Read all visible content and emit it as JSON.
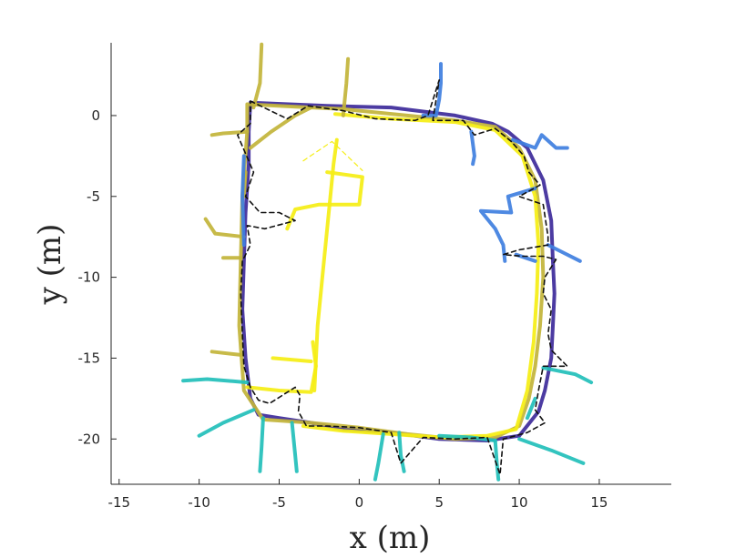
{
  "chart_data": {
    "type": "line",
    "title": "",
    "xlabel": "x (m)",
    "ylabel": "y (m)",
    "xlim": [
      -15.5,
      19.5
    ],
    "ylim": [
      -22.8,
      4.5
    ],
    "xticks": [
      -15,
      -10,
      -5,
      0,
      5,
      10,
      15
    ],
    "yticks": [
      0,
      -5,
      -10,
      -15,
      -20
    ],
    "xtick_labels": [
      "-15",
      "-10",
      "-5",
      "0",
      "5",
      "10",
      "15"
    ],
    "ytick_labels": [
      "0",
      "-5",
      "-10",
      "-15",
      "-20"
    ],
    "grid": false,
    "legend": "none",
    "colors": {
      "navy": "#3d2a9a",
      "olive": "#c2b43a",
      "yellow": "#f5ee14",
      "blue": "#3f7fe0",
      "teal": "#22bfba",
      "dashed": "#111111"
    },
    "series": [
      {
        "color": "navy",
        "style": "solid",
        "points": [
          [
            -6.8,
            0.8
          ],
          [
            -2,
            0.6
          ],
          [
            2,
            0.5
          ],
          [
            6,
            0
          ],
          [
            8.3,
            -0.5
          ],
          [
            9.3,
            -1
          ],
          [
            10.5,
            -2
          ],
          [
            11.5,
            -4
          ],
          [
            12,
            -6.5
          ],
          [
            12.1,
            -9
          ],
          [
            12.2,
            -11
          ],
          [
            12.1,
            -13
          ],
          [
            12,
            -15
          ],
          [
            11.6,
            -17
          ],
          [
            11.2,
            -18.3
          ],
          [
            10,
            -19.8
          ],
          [
            8,
            -20.1
          ],
          [
            5,
            -20
          ],
          [
            2,
            -19.6
          ],
          [
            -1,
            -19.4
          ],
          [
            -3,
            -19
          ],
          [
            -5,
            -18.7
          ],
          [
            -6.3,
            -18.5
          ],
          [
            -6.8,
            -17.5
          ],
          [
            -7.1,
            -15
          ],
          [
            -7.3,
            -12
          ],
          [
            -7.2,
            -9
          ],
          [
            -7.1,
            -6
          ],
          [
            -6.9,
            -3
          ],
          [
            -6.9,
            -1
          ],
          [
            -6.8,
            0.8
          ]
        ]
      },
      {
        "color": "olive",
        "style": "solid",
        "points": [
          [
            -7,
            0.7
          ],
          [
            -3,
            0.5
          ],
          [
            -1,
            0.4
          ],
          [
            0,
            0.3
          ],
          [
            3,
            0
          ],
          [
            6,
            -0.3
          ],
          [
            8.5,
            -0.7
          ],
          [
            10,
            -2
          ],
          [
            11,
            -4
          ],
          [
            11.4,
            -7
          ],
          [
            11.5,
            -10
          ],
          [
            11.3,
            -13
          ],
          [
            11,
            -15.5
          ],
          [
            10.6,
            -17.5
          ],
          [
            10,
            -19.2
          ],
          [
            8.5,
            -19.9
          ],
          [
            6,
            -20
          ],
          [
            3,
            -19.7
          ],
          [
            0,
            -19.3
          ],
          [
            -3,
            -19
          ],
          [
            -6,
            -18.8
          ],
          [
            -7.2,
            -17
          ],
          [
            -7.5,
            -13
          ],
          [
            -7.4,
            -9
          ],
          [
            -7.3,
            -5
          ],
          [
            -7,
            -1
          ],
          [
            -7,
            0.7
          ]
        ]
      },
      {
        "color": "yellow",
        "style": "solid",
        "points": [
          [
            -1.5,
            0.1
          ],
          [
            2,
            -0.2
          ],
          [
            6,
            -0.4
          ],
          [
            8.5,
            -0.9
          ],
          [
            10.2,
            -2.5
          ],
          [
            11,
            -5
          ],
          [
            11.2,
            -8
          ],
          [
            11.1,
            -11
          ],
          [
            10.9,
            -14
          ],
          [
            10.5,
            -17
          ],
          [
            9.8,
            -19.4
          ],
          [
            8,
            -19.8
          ],
          [
            5,
            -19.9
          ],
          [
            2,
            -19.7
          ],
          [
            -1,
            -19.5
          ],
          [
            -3.5,
            -19.2
          ]
        ]
      },
      {
        "color": "yellow",
        "style": "solid",
        "points": [
          [
            -7,
            -16.8
          ],
          [
            -5,
            -17
          ],
          [
            -3,
            -17.1
          ],
          [
            -2.7,
            -15.5
          ],
          [
            -2.9,
            -14
          ]
        ]
      },
      {
        "color": "yellow",
        "style": "solid",
        "points": [
          [
            -5.4,
            -15
          ],
          [
            -3,
            -15.2
          ]
        ]
      },
      {
        "color": "yellow",
        "style": "solid",
        "points": [
          [
            -2.8,
            -17
          ],
          [
            -2.6,
            -13
          ],
          [
            -2.3,
            -10
          ],
          [
            -2,
            -7
          ],
          [
            -1.8,
            -5
          ],
          [
            -1.6,
            -3
          ],
          [
            -1.4,
            -1.5
          ]
        ]
      },
      {
        "color": "yellow",
        "style": "solid",
        "points": [
          [
            -4.5,
            -7
          ],
          [
            -4,
            -5.8
          ],
          [
            -2.5,
            -5.5
          ],
          [
            0,
            -5.5
          ],
          [
            0.2,
            -3.8
          ],
          [
            -2,
            -3.5
          ]
        ]
      },
      {
        "color": "olive",
        "style": "solid",
        "points": [
          [
            -6.6,
            0.5
          ],
          [
            -6.2,
            2
          ],
          [
            -6.1,
            4.4
          ]
        ]
      },
      {
        "color": "olive",
        "style": "solid",
        "points": [
          [
            -7,
            -1
          ],
          [
            -8.5,
            -1.1
          ],
          [
            -9.2,
            -1.2
          ]
        ]
      },
      {
        "color": "olive",
        "style": "solid",
        "points": [
          [
            -7.2,
            -5
          ],
          [
            -7.1,
            -3.5
          ]
        ]
      },
      {
        "color": "olive",
        "style": "solid",
        "points": [
          [
            -7.2,
            -7.5
          ],
          [
            -9,
            -7.3
          ],
          [
            -9.6,
            -6.4
          ]
        ]
      },
      {
        "color": "olive",
        "style": "solid",
        "points": [
          [
            -7.4,
            -8.8
          ],
          [
            -8.5,
            -8.8
          ]
        ]
      },
      {
        "color": "olive",
        "style": "solid",
        "points": [
          [
            -7.4,
            -14.8
          ],
          [
            -9.2,
            -14.6
          ]
        ]
      },
      {
        "color": "olive",
        "style": "solid",
        "points": [
          [
            -6.8,
            -2
          ],
          [
            -5.5,
            -1
          ],
          [
            -4,
            0
          ],
          [
            -3,
            0.5
          ]
        ]
      },
      {
        "color": "olive",
        "style": "solid",
        "points": [
          [
            -1,
            0
          ],
          [
            -0.8,
            2
          ],
          [
            -0.7,
            3.5
          ]
        ]
      },
      {
        "color": "blue",
        "style": "solid",
        "points": [
          [
            4,
            0
          ],
          [
            4.8,
            0
          ],
          [
            5,
            1
          ],
          [
            5.1,
            2
          ],
          [
            5.1,
            3.2
          ]
        ]
      },
      {
        "color": "blue",
        "style": "solid",
        "points": [
          [
            7,
            -1
          ],
          [
            7.2,
            -2.5
          ],
          [
            7.1,
            -3
          ]
        ]
      },
      {
        "color": "blue",
        "style": "solid",
        "points": [
          [
            9.6,
            -1.5
          ],
          [
            11,
            -2
          ],
          [
            11.4,
            -1.2
          ],
          [
            12.3,
            -2
          ],
          [
            13,
            -2
          ]
        ]
      },
      {
        "color": "blue",
        "style": "solid",
        "points": [
          [
            11,
            -4.5
          ],
          [
            9.3,
            -5
          ],
          [
            9.5,
            -6
          ],
          [
            7.6,
            -5.9
          ],
          [
            8.5,
            -7
          ],
          [
            9,
            -8
          ],
          [
            9.1,
            -9
          ]
        ]
      },
      {
        "color": "blue",
        "style": "solid",
        "points": [
          [
            11.8,
            -8
          ],
          [
            12.8,
            -8.5
          ],
          [
            13.8,
            -9
          ]
        ]
      },
      {
        "color": "blue",
        "style": "solid",
        "points": [
          [
            11,
            -9
          ],
          [
            9.8,
            -8.6
          ]
        ]
      },
      {
        "color": "blue",
        "style": "solid",
        "points": [
          [
            -7.2,
            -2.5
          ],
          [
            -7.3,
            -5
          ],
          [
            -7.2,
            -8
          ]
        ]
      },
      {
        "color": "teal",
        "style": "solid",
        "points": [
          [
            -7,
            -16.5
          ],
          [
            -9.5,
            -16.3
          ],
          [
            -11,
            -16.4
          ]
        ]
      },
      {
        "color": "teal",
        "style": "solid",
        "points": [
          [
            -6.6,
            -18.2
          ],
          [
            -8.5,
            -19
          ],
          [
            -10,
            -19.8
          ]
        ]
      },
      {
        "color": "teal",
        "style": "solid",
        "points": [
          [
            -6,
            -18.7
          ],
          [
            -6.1,
            -20.5
          ],
          [
            -6.2,
            -22
          ]
        ]
      },
      {
        "color": "teal",
        "style": "solid",
        "points": [
          [
            -4.2,
            -19
          ],
          [
            -4,
            -21
          ],
          [
            -3.9,
            -22
          ]
        ]
      },
      {
        "color": "teal",
        "style": "solid",
        "points": [
          [
            1.5,
            -19.7
          ],
          [
            1.2,
            -21.5
          ],
          [
            1,
            -22.5
          ]
        ]
      },
      {
        "color": "teal",
        "style": "solid",
        "points": [
          [
            2.5,
            -19.6
          ],
          [
            2.6,
            -21
          ],
          [
            2.8,
            -22
          ]
        ]
      },
      {
        "color": "teal",
        "style": "solid",
        "points": [
          [
            5,
            -19.8
          ],
          [
            7,
            -19.9
          ],
          [
            8.5,
            -20.1
          ]
        ]
      },
      {
        "color": "teal",
        "style": "solid",
        "points": [
          [
            8.5,
            -20.1
          ],
          [
            8.6,
            -21.5
          ],
          [
            8.7,
            -22.5
          ]
        ]
      },
      {
        "color": "teal",
        "style": "solid",
        "points": [
          [
            10,
            -20
          ],
          [
            12,
            -20.7
          ],
          [
            14,
            -21.5
          ]
        ]
      },
      {
        "color": "teal",
        "style": "solid",
        "points": [
          [
            11.5,
            -15.6
          ],
          [
            13.5,
            -16
          ],
          [
            14.5,
            -16.5
          ]
        ]
      },
      {
        "color": "teal",
        "style": "solid",
        "points": [
          [
            11,
            -17.5
          ],
          [
            10.5,
            -18.7
          ]
        ]
      },
      {
        "color": "dashed",
        "style": "dashed",
        "points": [
          [
            -6.8,
            0.9
          ],
          [
            -4.5,
            -0.2
          ],
          [
            -3.2,
            0.6
          ],
          [
            -1,
            0.3
          ],
          [
            1,
            -0.2
          ],
          [
            3.5,
            -0.3
          ],
          [
            4.3,
            0
          ],
          [
            5,
            2.2
          ],
          [
            4.6,
            -0.3
          ],
          [
            6.5,
            -0.3
          ],
          [
            7.2,
            -1.2
          ],
          [
            8.5,
            -0.8
          ],
          [
            9.5,
            -1.6
          ],
          [
            10.3,
            -2.5
          ],
          [
            10.6,
            -3.5
          ],
          [
            11.3,
            -4.3
          ],
          [
            10,
            -5
          ],
          [
            11.5,
            -5.5
          ],
          [
            11.8,
            -7.5
          ],
          [
            11.8,
            -8
          ],
          [
            10,
            -8.3
          ],
          [
            9,
            -8.6
          ],
          [
            10.2,
            -8.7
          ],
          [
            11.5,
            -8.7
          ],
          [
            12.3,
            -8.9
          ],
          [
            11.6,
            -10
          ],
          [
            11.5,
            -11
          ],
          [
            12,
            -12
          ],
          [
            11.8,
            -13.5
          ],
          [
            12,
            -14.5
          ],
          [
            13,
            -15.5
          ],
          [
            11.5,
            -15.5
          ],
          [
            11.2,
            -17
          ],
          [
            11,
            -18.2
          ],
          [
            11.6,
            -19
          ],
          [
            10.5,
            -19.6
          ],
          [
            9,
            -20
          ],
          [
            8.8,
            -22.2
          ],
          [
            8,
            -19.9
          ],
          [
            6,
            -20
          ],
          [
            4,
            -19.9
          ],
          [
            2.6,
            -21.5
          ],
          [
            2,
            -19.6
          ],
          [
            0,
            -19.3
          ],
          [
            -2,
            -19.2
          ],
          [
            -3.3,
            -19.2
          ],
          [
            -3.8,
            -18.3
          ],
          [
            -3.7,
            -17.3
          ],
          [
            -4,
            -16.8
          ],
          [
            -5.6,
            -17.8
          ],
          [
            -6.3,
            -17.6
          ],
          [
            -6.8,
            -16.8
          ],
          [
            -7.2,
            -15.5
          ],
          [
            -7.3,
            -13.5
          ],
          [
            -7.4,
            -11
          ],
          [
            -7.3,
            -9
          ],
          [
            -6.8,
            -8
          ],
          [
            -7,
            -6.8
          ],
          [
            -5.9,
            -7
          ],
          [
            -4,
            -6.5
          ],
          [
            -5,
            -6
          ],
          [
            -6.2,
            -6
          ],
          [
            -7.1,
            -5
          ],
          [
            -6.6,
            -3.5
          ],
          [
            -7.6,
            -1.2
          ],
          [
            -6.8,
            -0.5
          ],
          [
            -6.8,
            0.9
          ]
        ]
      },
      {
        "color": "yellow",
        "style": "dashed",
        "points": [
          [
            -3.5,
            -2.8
          ],
          [
            -1.7,
            -1.6
          ],
          [
            0.2,
            -3.4
          ]
        ]
      }
    ]
  }
}
